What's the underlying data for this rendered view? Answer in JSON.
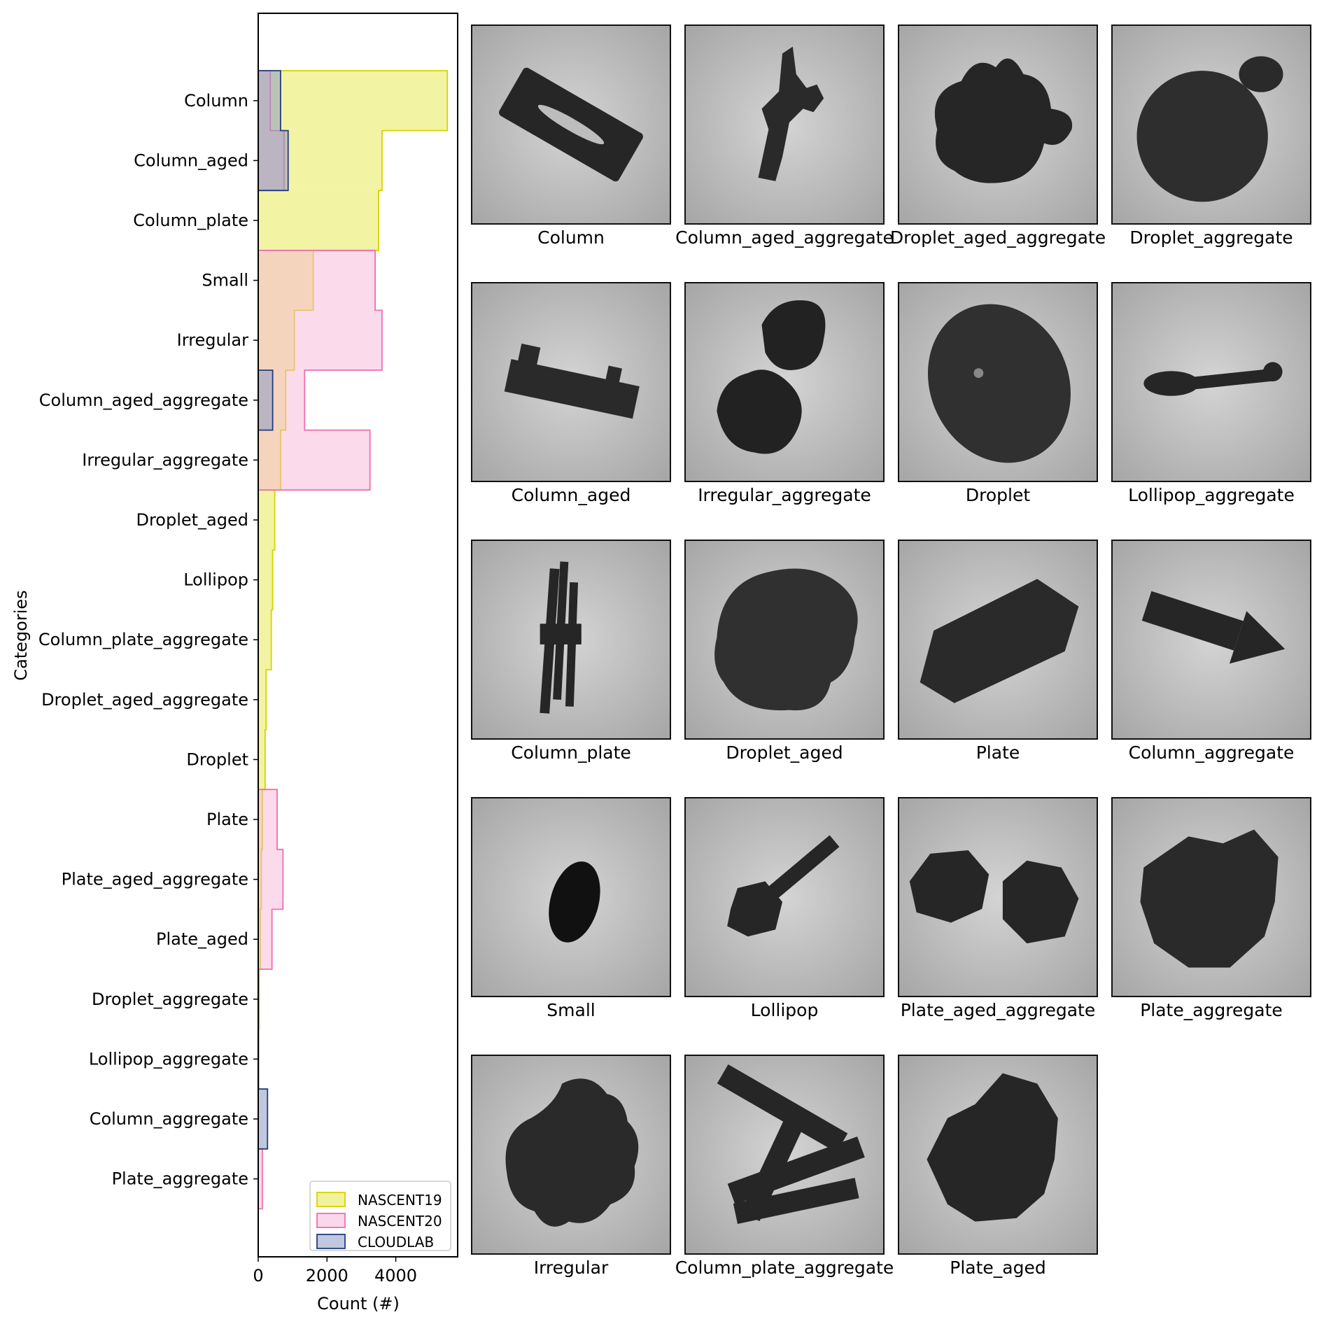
{
  "chart_data": {
    "type": "histogram (horizontal step)",
    "xlabel": "Count (#)",
    "ylabel": "Categories",
    "xlim": [
      0,
      5800
    ],
    "xticks": [
      0,
      2000,
      4000
    ],
    "xtick_labels": [
      "0",
      "2000",
      "4000"
    ],
    "categories": [
      "Column",
      "Column_aged",
      "Column_plate",
      "Small",
      "Irregular",
      "Column_aged_aggregate",
      "Irregular_aggregate",
      "Droplet_aged",
      "Lollipop",
      "Column_plate_aggregate",
      "Droplet_aged_aggregate",
      "Droplet",
      "Plate",
      "Plate_aged_aggregate",
      "Plate_aged",
      "Droplet_aggregate",
      "Lollipop_aggregate",
      "Column_aggregate",
      "Plate_aggregate"
    ],
    "series": [
      {
        "name": "NASCENT19",
        "color": "#e8e84a",
        "edge": "#d4d400",
        "values": [
          5500,
          3600,
          3500,
          1600,
          1050,
          800,
          650,
          480,
          420,
          380,
          230,
          200,
          120,
          90,
          60,
          30,
          20,
          0,
          0
        ]
      },
      {
        "name": "NASCENT20",
        "color": "#f7b6d8",
        "edge": "#ee6fb0",
        "values": [
          350,
          750,
          0,
          3400,
          3600,
          1350,
          3250,
          0,
          0,
          0,
          0,
          0,
          550,
          720,
          400,
          0,
          0,
          0,
          120
        ]
      },
      {
        "name": "CLOUDLAB",
        "color": "#8a9bc4",
        "edge": "#223d80",
        "values": [
          650,
          870,
          0,
          0,
          0,
          420,
          0,
          0,
          0,
          0,
          0,
          0,
          0,
          0,
          0,
          0,
          0,
          270,
          0
        ]
      }
    ],
    "legend": [
      "NASCENT19",
      "NASCENT20",
      "CLOUDLAB"
    ],
    "legend_position": "lower-right",
    "grid": false
  },
  "gallery": [
    {
      "label": "Column",
      "shape": "rect-rotated"
    },
    {
      "label": "Column_aged_aggregate",
      "shape": "branch"
    },
    {
      "label": "Droplet_aged_aggregate",
      "shape": "blob"
    },
    {
      "label": "Droplet_aggregate",
      "shape": "disc-bud"
    },
    {
      "label": "Column_aged",
      "shape": "bar"
    },
    {
      "label": "Irregular_aggregate",
      "shape": "double-blob"
    },
    {
      "label": "Droplet",
      "shape": "ellipse"
    },
    {
      "label": "Lollipop_aggregate",
      "shape": "lollipop-flat"
    },
    {
      "label": "Column_plate",
      "shape": "vertical-needles"
    },
    {
      "label": "Droplet_aged",
      "shape": "round-ridged"
    },
    {
      "label": "Plate",
      "shape": "hexagon-long"
    },
    {
      "label": "Column_aggregate",
      "shape": "arrow-bar"
    },
    {
      "label": "Small",
      "shape": "small-drop"
    },
    {
      "label": "Lollipop",
      "shape": "lollipop"
    },
    {
      "label": "Plate_aged_aggregate",
      "shape": "twin-hex"
    },
    {
      "label": "Plate_aggregate",
      "shape": "hexagon-big"
    },
    {
      "label": "Irregular",
      "shape": "irregular"
    },
    {
      "label": "Column_plate_aggregate",
      "shape": "crossed-columns"
    },
    {
      "label": "Plate_aged",
      "shape": "plate-cluster"
    }
  ]
}
